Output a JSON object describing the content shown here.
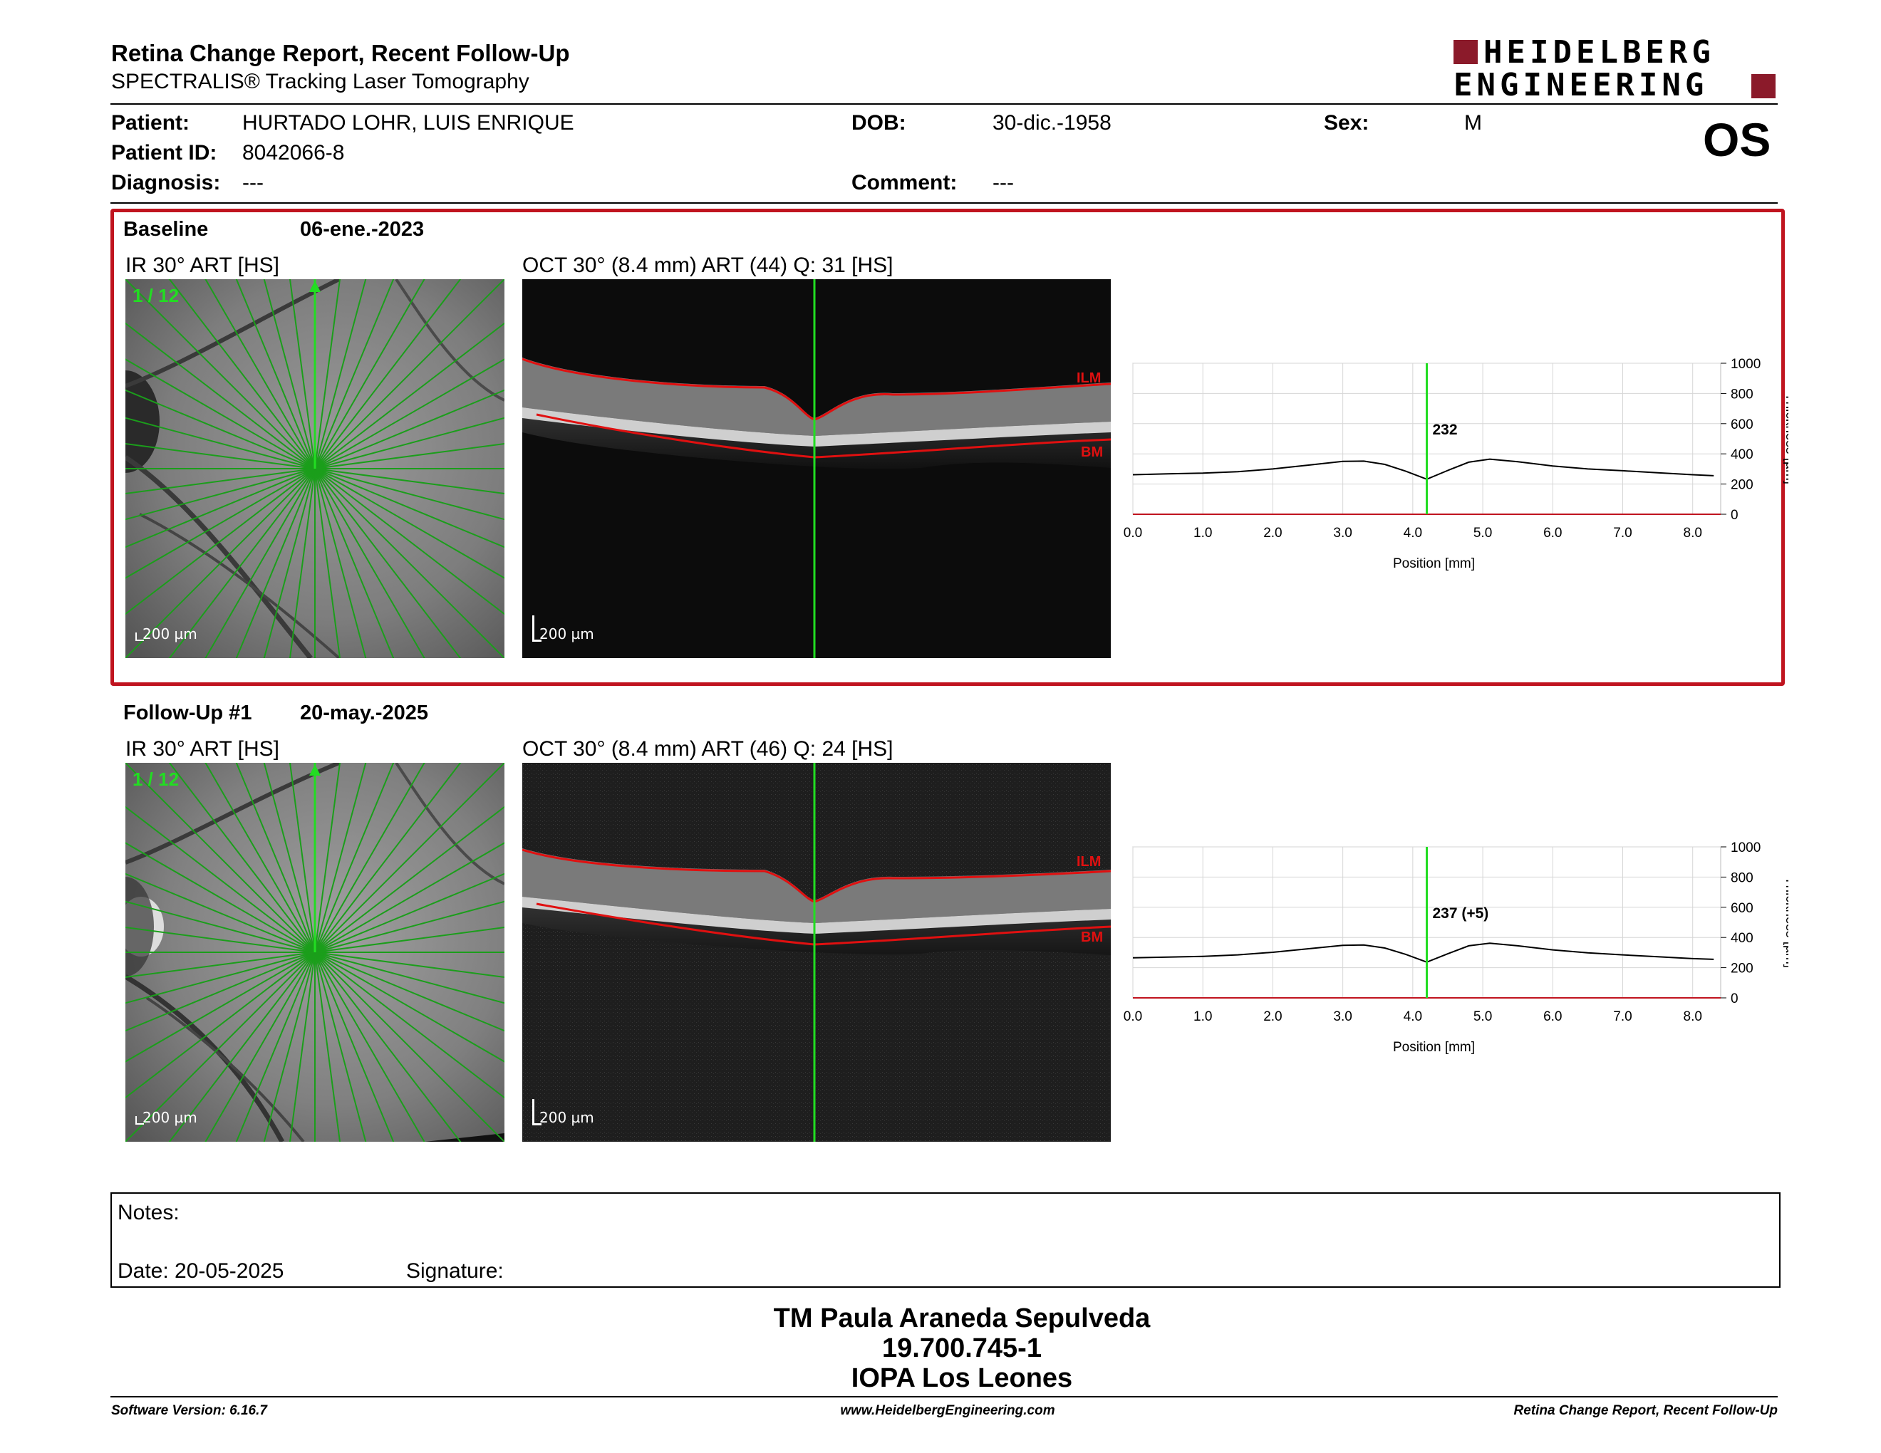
{
  "report": {
    "title": "Retina Change Report, Recent Follow-Up",
    "subtitle": "SPECTRALIS® Tracking Laser Tomography",
    "logo_line1": "HEIDELBERG",
    "logo_line2": "ENGINEERING",
    "eye": "OS"
  },
  "patient": {
    "patient_label": "Patient:",
    "patient_name": "HURTADO LOHR, LUIS ENRIQUE",
    "id_label": "Patient ID:",
    "id_value": "8042066-8",
    "diagnosis_label": "Diagnosis:",
    "diagnosis_value": "---",
    "dob_label": "DOB:",
    "dob_value": "30-dic.-1958",
    "comment_label": "Comment:",
    "comment_value": "---",
    "sex_label": "Sex:",
    "sex_value": "M"
  },
  "baseline": {
    "label": "Baseline",
    "date": "06-ene.-2023",
    "ir_title": "IR 30° ART [HS]",
    "scan_index": "1 / 12",
    "oct_title": "OCT 30° (8.4 mm) ART (44) Q: 31 [HS]",
    "scale": "200 µm",
    "ilm": "ILM",
    "bm": "BM"
  },
  "followup": {
    "label": "Follow-Up #1",
    "date": "20-may.-2025",
    "ir_title": "IR 30° ART [HS]",
    "scan_index": "1 / 12",
    "oct_title": "OCT 30° (8.4 mm) ART (46) Q: 24 [HS]",
    "scale": "200 µm",
    "ilm": "ILM",
    "bm": "BM"
  },
  "chart_data": [
    {
      "type": "line",
      "xlabel": "Position [mm]",
      "ylabel": "Thickness [µm]",
      "xlim": [
        0,
        8.4
      ],
      "ylim": [
        0,
        1000
      ],
      "x_ticks": [
        "0.0",
        "1.0",
        "2.0",
        "3.0",
        "4.0",
        "5.0",
        "6.0",
        "7.0",
        "8.0"
      ],
      "y_ticks": [
        "0",
        "200",
        "400",
        "600",
        "800",
        "1000"
      ],
      "marker_position": 4.2,
      "marker_label": "232",
      "series": [
        {
          "x": [
            0.0,
            0.5,
            1.0,
            1.5,
            2.0,
            2.5,
            3.0,
            3.3,
            3.6,
            3.9,
            4.2,
            4.5,
            4.8,
            5.1,
            5.5,
            6.0,
            6.5,
            7.0,
            7.5,
            8.0,
            8.3
          ],
          "values": [
            262,
            268,
            272,
            282,
            300,
            325,
            350,
            352,
            330,
            285,
            232,
            290,
            345,
            365,
            348,
            320,
            300,
            288,
            275,
            262,
            255
          ]
        }
      ]
    },
    {
      "type": "line",
      "xlabel": "Position [mm]",
      "ylabel": "Thickness [µm]",
      "xlim": [
        0,
        8.4
      ],
      "ylim": [
        0,
        1000
      ],
      "x_ticks": [
        "0.0",
        "1.0",
        "2.0",
        "3.0",
        "4.0",
        "5.0",
        "6.0",
        "7.0",
        "8.0"
      ],
      "y_ticks": [
        "0",
        "200",
        "400",
        "600",
        "800",
        "1000"
      ],
      "marker_position": 4.2,
      "marker_label": "237 (+5)",
      "series": [
        {
          "x": [
            0.0,
            0.5,
            1.0,
            1.5,
            2.0,
            2.5,
            3.0,
            3.3,
            3.6,
            3.9,
            4.2,
            4.5,
            4.8,
            5.1,
            5.5,
            6.0,
            6.5,
            7.0,
            7.5,
            8.0,
            8.3
          ],
          "values": [
            265,
            270,
            275,
            285,
            302,
            325,
            348,
            350,
            330,
            288,
            237,
            292,
            345,
            362,
            345,
            318,
            298,
            285,
            272,
            260,
            255
          ]
        }
      ]
    }
  ],
  "notes": {
    "notes_label": "Notes:",
    "date_label": "Date: 20-05-2025",
    "signature_label": "Signature:"
  },
  "signatory": {
    "name": "TM Paula Araneda Sepulveda",
    "id": "19.700.745-1",
    "institution": "IOPA Los Leones"
  },
  "footer": {
    "software": "Software Version: 6.16.7",
    "website": "www.HeidelbergEngineering.com",
    "report_name": "Retina Change Report, Recent Follow-Up"
  },
  "colors": {
    "frame": "#c0141f",
    "scan_line": "#22dd22",
    "segmentation": "#e01010",
    "logo": "#8b1a2a"
  }
}
